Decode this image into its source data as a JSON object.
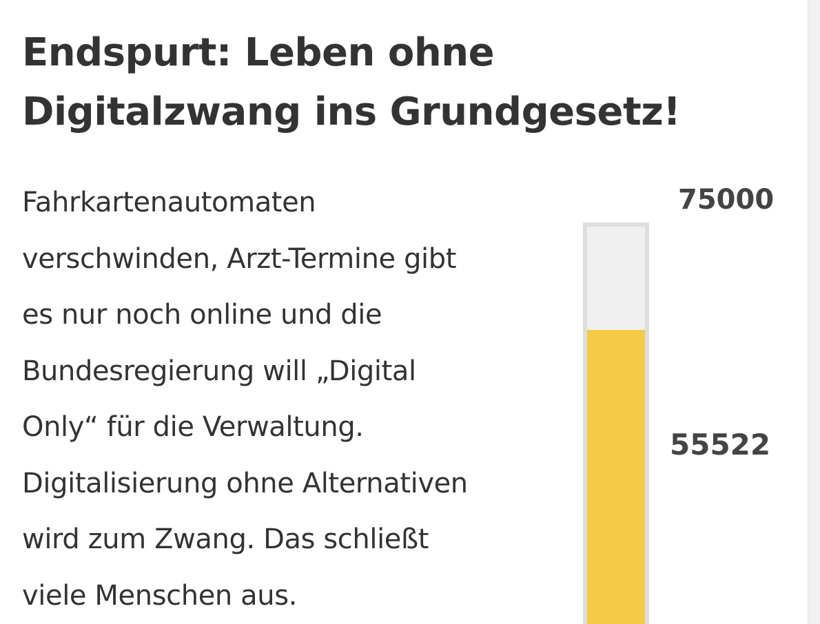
{
  "title": {
    "lines": [
      "Endspurt: Leben ohne",
      "Digitalzwang ins Grundgesetz!"
    ]
  },
  "description": {
    "lines": [
      "Fahrkartenautomaten",
      "verschwinden, Arzt-Termine gibt",
      "es nur noch online und die",
      "Bundesregierung will „Digital",
      "Only“ für die Verwaltung.",
      "Digitalisierung ohne Alternativen",
      "wird zum Zwang. Das schließt",
      "viele Menschen aus."
    ]
  },
  "progress": {
    "goal": 75000,
    "goal_label": "75000",
    "current": 55522,
    "current_label": "55522",
    "fill_color": "#f4cb47",
    "track_color": "#efefef"
  }
}
